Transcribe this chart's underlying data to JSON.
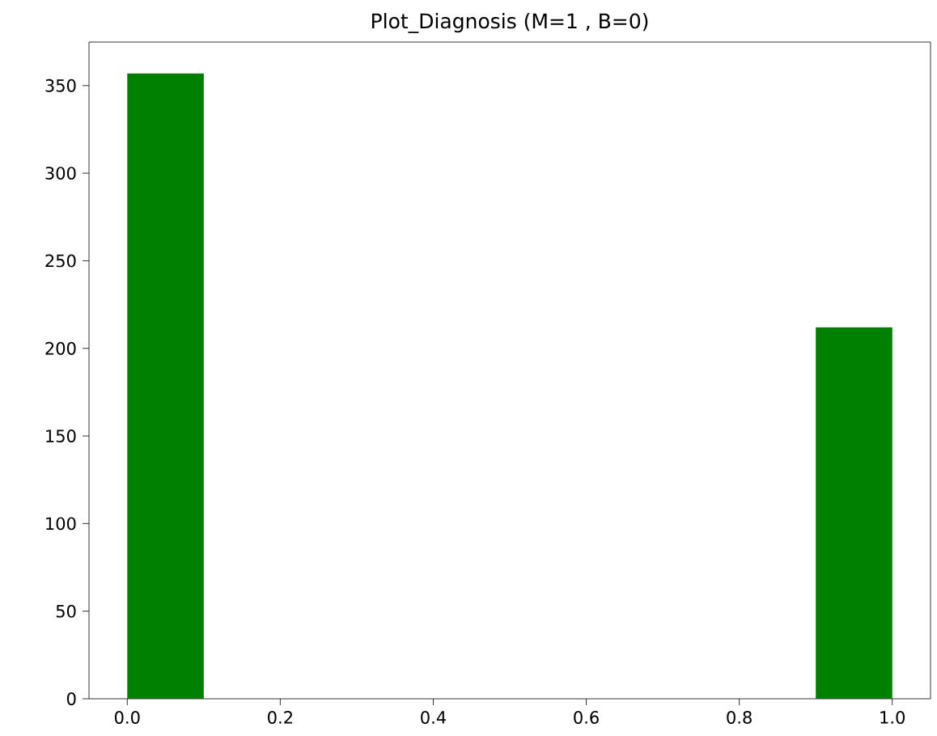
{
  "chart_data": {
    "type": "histogram",
    "title": "Plot_Diagnosis (M=1 , B=0)",
    "bins": [
      0,
      0.1,
      0.2,
      0.3,
      0.4,
      0.5,
      0.6,
      0.7,
      0.8,
      0.9,
      1.0
    ],
    "values": [
      357,
      0,
      0,
      0,
      0,
      0,
      0,
      0,
      0,
      212
    ],
    "color": "#008000",
    "xlim": [
      -0.05,
      1.05
    ],
    "ylim": [
      0,
      374.85
    ],
    "xticks": [
      {
        "value": 0,
        "label": "0.0"
      },
      0.2,
      0.4,
      0.6,
      0.8,
      {
        "value": 1,
        "label": "1.0"
      }
    ],
    "yticks": [
      0,
      50,
      100,
      150,
      200,
      250,
      300,
      350
    ],
    "grid": false
  }
}
